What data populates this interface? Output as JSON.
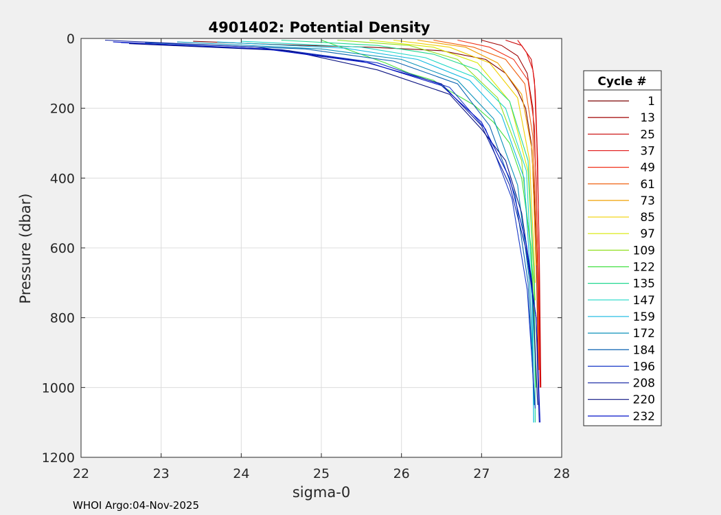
{
  "chart_data": {
    "type": "line",
    "title": "4901402: Potential Density",
    "xlabel": "sigma-0",
    "ylabel": "Pressure (dbar)",
    "xlim": [
      22,
      28
    ],
    "ylim": [
      0,
      1200
    ],
    "y_reversed": true,
    "grid": true,
    "x_ticks": [
      "22",
      "23",
      "24",
      "25",
      "26",
      "27",
      "28"
    ],
    "y_ticks": [
      "0",
      "200",
      "400",
      "600",
      "800",
      "1000",
      "1200"
    ],
    "legend": {
      "title": "Cycle #",
      "placement": "right-outside",
      "entries": [
        {
          "name": "1",
          "color": "#7a0000"
        },
        {
          "name": "13",
          "color": "#a00000"
        },
        {
          "name": "25",
          "color": "#c80000"
        },
        {
          "name": "37",
          "color": "#e01010"
        },
        {
          "name": "49",
          "color": "#f03018"
        },
        {
          "name": "61",
          "color": "#f06010"
        },
        {
          "name": "73",
          "color": "#f0a000"
        },
        {
          "name": "85",
          "color": "#f0d000"
        },
        {
          "name": "97",
          "color": "#d8e800"
        },
        {
          "name": "109",
          "color": "#90e020"
        },
        {
          "name": "122",
          "color": "#40e040"
        },
        {
          "name": "135",
          "color": "#20d890"
        },
        {
          "name": "147",
          "color": "#20d8c8"
        },
        {
          "name": "159",
          "color": "#10b8e0"
        },
        {
          "name": "172",
          "color": "#0890b8"
        },
        {
          "name": "184",
          "color": "#0860b0"
        },
        {
          "name": "196",
          "color": "#1838c8"
        },
        {
          "name": "208",
          "color": "#1020a0"
        },
        {
          "name": "220",
          "color": "#081080"
        },
        {
          "name": "232",
          "color": "#0010c8"
        }
      ]
    },
    "series": [
      {
        "cycle": 1,
        "color": "#7a0000",
        "x": [
          23.4,
          24.5,
          25.6,
          26.5,
          27.05,
          27.3,
          27.45,
          27.55,
          27.62,
          27.66,
          27.69,
          27.71
        ],
        "y": [
          8,
          18,
          25,
          35,
          60,
          100,
          150,
          200,
          300,
          450,
          700,
          1020
        ]
      },
      {
        "cycle": 13,
        "color": "#a00000",
        "x": [
          27.0,
          27.25,
          27.45,
          27.57,
          27.64,
          27.68,
          27.71,
          27.73
        ],
        "y": [
          5,
          20,
          50,
          100,
          200,
          400,
          700,
          1000
        ]
      },
      {
        "cycle": 25,
        "color": "#c80000",
        "x": [
          27.3,
          27.5,
          27.62,
          27.66,
          27.69,
          27.72,
          27.74
        ],
        "y": [
          5,
          20,
          60,
          120,
          300,
          600,
          1000
        ]
      },
      {
        "cycle": 37,
        "color": "#e01010",
        "x": [
          27.45,
          27.56,
          27.64,
          27.67,
          27.7,
          27.72,
          27.73
        ],
        "y": [
          5,
          40,
          90,
          150,
          350,
          650,
          1000
        ]
      },
      {
        "cycle": 49,
        "color": "#f03018",
        "x": [
          26.7,
          27.1,
          27.4,
          27.58,
          27.66,
          27.7,
          27.72
        ],
        "y": [
          5,
          25,
          60,
          120,
          250,
          600,
          950
        ]
      },
      {
        "cycle": 61,
        "color": "#f06010",
        "x": [
          26.4,
          26.9,
          27.3,
          27.54,
          27.64,
          27.69,
          27.71
        ],
        "y": [
          5,
          25,
          60,
          130,
          280,
          600,
          950
        ]
      },
      {
        "cycle": 73,
        "color": "#f0a000",
        "x": [
          26.2,
          26.8,
          27.2,
          27.5,
          27.63,
          27.68
        ],
        "y": [
          5,
          25,
          70,
          160,
          320,
          650
        ]
      },
      {
        "cycle": 85,
        "color": "#f0d000",
        "x": [
          25.9,
          26.6,
          27.1,
          27.45,
          27.6,
          27.67
        ],
        "y": [
          5,
          25,
          70,
          170,
          350,
          700
        ]
      },
      {
        "cycle": 97,
        "color": "#d8e800",
        "x": [
          25.6,
          26.4,
          26.95,
          27.35,
          27.58,
          27.67
        ],
        "y": [
          5,
          25,
          70,
          180,
          380,
          750
        ]
      },
      {
        "cycle": 109,
        "color": "#90e020",
        "x": [
          25.2,
          26.1,
          26.7,
          27.2,
          27.5,
          27.65,
          27.68
        ],
        "y": [
          5,
          20,
          60,
          170,
          350,
          700,
          1000
        ]
      },
      {
        "cycle": 122,
        "color": "#40e040",
        "x": [
          25.0,
          25.8,
          26.1,
          26.4,
          26.6,
          26.9,
          27.15,
          27.35,
          27.5,
          27.62,
          27.68
        ],
        "y": [
          5,
          70,
          100,
          120,
          150,
          190,
          240,
          300,
          400,
          600,
          1000
        ]
      },
      {
        "cycle": 135,
        "color": "#20d890",
        "x": [
          24.5,
          25.7,
          26.4,
          26.95,
          27.35,
          27.58,
          27.66,
          27.67
        ],
        "y": [
          5,
          20,
          45,
          90,
          180,
          350,
          700,
          1100
        ]
      },
      {
        "cycle": 147,
        "color": "#20d8c8",
        "x": [
          24.0,
          25.5,
          26.3,
          26.9,
          27.3,
          27.56,
          27.64,
          27.65
        ],
        "y": [
          8,
          25,
          55,
          110,
          200,
          380,
          750,
          1100
        ]
      },
      {
        "cycle": 159,
        "color": "#10b8e0",
        "x": [
          23.7,
          25.3,
          26.2,
          26.85,
          27.25,
          27.53,
          27.63,
          27.65
        ],
        "y": [
          10,
          28,
          60,
          120,
          220,
          400,
          750,
          1100
        ]
      },
      {
        "cycle": 172,
        "color": "#0890b8",
        "x": [
          23.2,
          25.0,
          26.0,
          26.7,
          27.15,
          27.45,
          27.6,
          27.66
        ],
        "y": [
          10,
          30,
          60,
          120,
          230,
          420,
          700,
          1050
        ]
      },
      {
        "cycle": 184,
        "color": "#0860b0",
        "x": [
          22.8,
          24.8,
          25.9,
          26.7,
          27.1,
          27.42,
          27.58,
          27.66
        ],
        "y": [
          12,
          30,
          65,
          130,
          250,
          450,
          700,
          1050
        ]
      },
      {
        "cycle": 196,
        "color": "#1838c8",
        "x": [
          22.5,
          24.5,
          25.7,
          26.6,
          27.05,
          27.38,
          27.57,
          27.67
        ],
        "y": [
          12,
          32,
          70,
          140,
          260,
          460,
          720,
          1060
        ]
      },
      {
        "cycle": 208,
        "color": "#1020a0",
        "x": [
          22.3,
          24.2,
          25.5,
          26.5,
          27.0,
          27.35,
          27.55,
          27.68,
          27.72
        ],
        "y": [
          5,
          25,
          65,
          130,
          250,
          420,
          600,
          800,
          1100
        ]
      },
      {
        "cycle": 220,
        "color": "#081080",
        "x": [
          22.6,
          24.6,
          25.7,
          26.6,
          27.0,
          27.3,
          27.5,
          27.63,
          27.7
        ],
        "y": [
          15,
          35,
          90,
          160,
          260,
          350,
          500,
          700,
          1050
        ]
      },
      {
        "cycle": 232,
        "color": "#0010c8",
        "x": [
          22.4,
          24.3,
          25.6,
          26.5,
          27.0,
          27.35,
          27.55,
          27.68,
          27.73
        ],
        "y": [
          10,
          30,
          70,
          135,
          240,
          400,
          580,
          800,
          1100
        ]
      }
    ]
  },
  "footer": "WHOI Argo:04-Nov-2025"
}
